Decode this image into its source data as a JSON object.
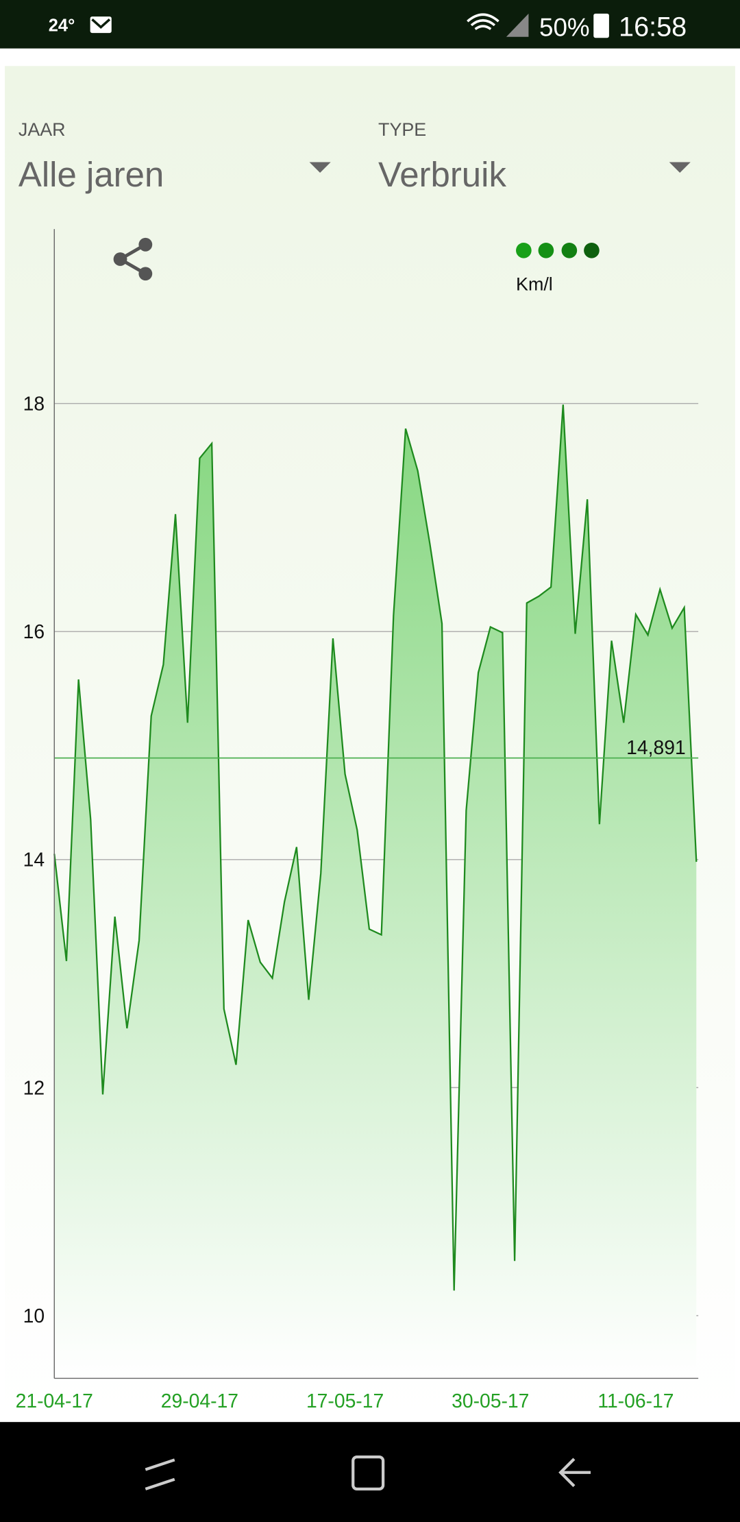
{
  "status_bar": {
    "temperature": "24°",
    "battery": "50%",
    "time": "16:58"
  },
  "filters": [
    {
      "label": "JAAR",
      "value": "Alle jaren"
    },
    {
      "label": "TYPE",
      "value": "Verbruik"
    }
  ],
  "chart_data": {
    "type": "area",
    "categories": [
      "21-04-17",
      null,
      null,
      null,
      null,
      null,
      null,
      null,
      null,
      null,
      null,
      null,
      "29-04-17",
      null,
      null,
      null,
      null,
      null,
      null,
      null,
      null,
      null,
      null,
      null,
      "17-05-17",
      null,
      null,
      null,
      null,
      null,
      null,
      null,
      null,
      null,
      null,
      null,
      "30-05-17",
      null,
      null,
      null,
      null,
      null,
      null,
      null,
      null,
      null,
      null,
      null,
      "11-06-17",
      null,
      null,
      null,
      null,
      null
    ],
    "series": [
      {
        "name": "Km/l",
        "color": "#1e8a1e",
        "values": [
          14.05,
          13.11,
          15.58,
          14.35,
          11.94,
          13.5,
          12.52,
          13.29,
          15.26,
          15.71,
          17.03,
          15.2,
          17.52,
          17.65,
          12.69,
          12.2,
          13.47,
          13.1,
          12.96,
          13.63,
          14.11,
          12.77,
          13.88,
          15.94,
          14.75,
          14.26,
          13.39,
          13.34,
          16.14,
          17.78,
          17.41,
          16.77,
          16.07,
          10.22,
          14.43,
          15.64,
          16.04,
          15.99,
          10.48,
          16.25,
          16.31,
          16.39,
          17.99,
          15.98,
          17.16,
          14.31,
          15.92,
          15.2,
          16.15,
          15.97,
          16.37,
          16.03,
          16.21,
          13.98
        ]
      }
    ],
    "average": {
      "value": 14.891,
      "label": "14,891"
    },
    "ylim": [
      9.45,
      19.53
    ],
    "yticks": [
      10,
      12,
      14,
      16,
      18
    ],
    "grid": true
  }
}
